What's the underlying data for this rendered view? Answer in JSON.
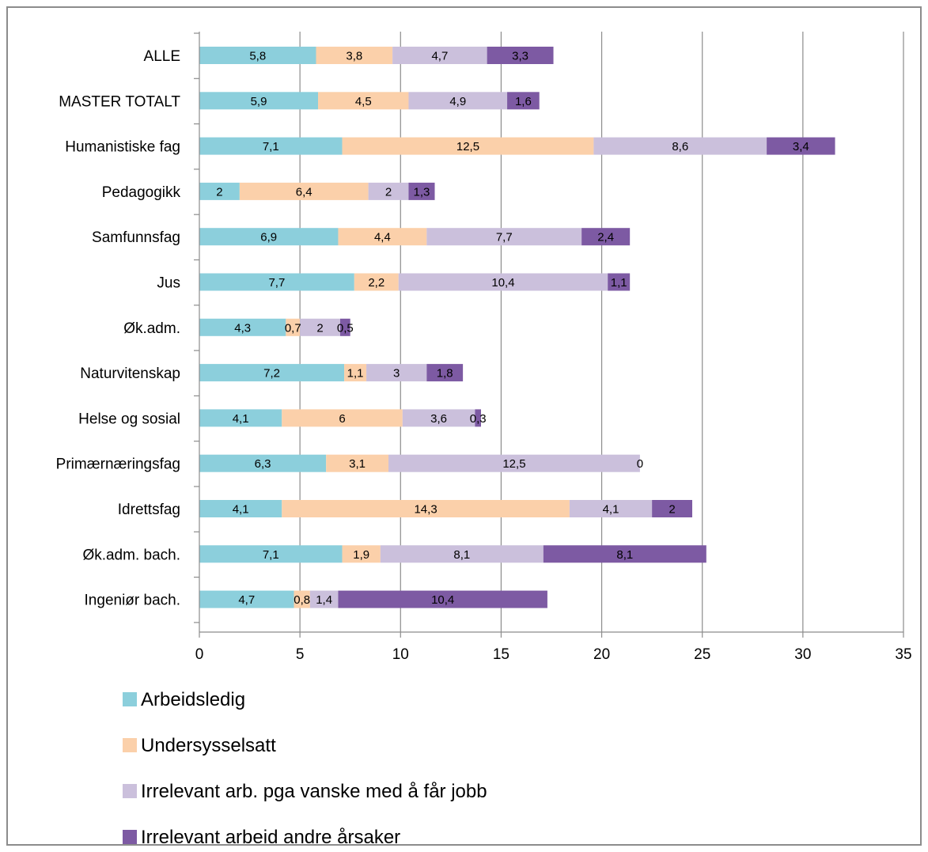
{
  "chart_data": {
    "type": "bar",
    "orientation": "horizontal",
    "stacked": true,
    "title": "",
    "xlabel": "",
    "ylabel": "",
    "xlim": [
      0,
      35
    ],
    "xticks": [
      0,
      5,
      10,
      15,
      20,
      25,
      30,
      35
    ],
    "grid": "vertical",
    "legend_position": "bottom",
    "categories": [
      "ALLE",
      "MASTER TOTALT",
      "Humanistiske fag",
      "Pedagogikk",
      "Samfunnsfag",
      "Jus",
      "Øk.adm.",
      "Naturvitenskap",
      "Helse og sosial",
      "Primærnæringsfag",
      "Idrettsfag",
      "Øk.adm. bach.",
      "Ingeniør bach."
    ],
    "series": [
      {
        "name": "Arbeidsledig",
        "color": "#8ccfdc",
        "values": [
          5.8,
          5.9,
          7.1,
          2,
          6.9,
          7.7,
          4.3,
          7.2,
          4.1,
          6.3,
          4.1,
          7.1,
          4.7
        ],
        "labels": [
          "5,8",
          "5,9",
          "7,1",
          "2",
          "6,9",
          "7,7",
          "4,3",
          "7,2",
          "4,1",
          "6,3",
          "4,1",
          "7,1",
          "4,7"
        ]
      },
      {
        "name": "Undersysselsatt",
        "color": "#fbd0aa",
        "values": [
          3.8,
          4.5,
          12.5,
          6.4,
          4.4,
          2.2,
          0.7,
          1.1,
          6,
          3.1,
          14.3,
          1.9,
          0.8
        ],
        "labels": [
          "3,8",
          "4,5",
          "12,5",
          "6,4",
          "4,4",
          "2,2",
          "0,7",
          "1,1",
          "6",
          "3,1",
          "14,3",
          "1,9",
          "0,8"
        ]
      },
      {
        "name": "Irrelevant arb. pga vanske med å får jobb",
        "color": "#cbc0dc",
        "values": [
          4.7,
          4.9,
          8.6,
          2,
          7.7,
          10.4,
          2,
          3,
          3.6,
          12.5,
          4.1,
          8.1,
          1.4
        ],
        "labels": [
          "4,7",
          "4,9",
          "8,6",
          "2",
          "7,7",
          "10,4",
          "2",
          "3",
          "3,6",
          "12,5",
          "4,1",
          "8,1",
          "1,4"
        ]
      },
      {
        "name": "Irrelevant arbeid andre årsaker",
        "color": "#7d5aa3",
        "values": [
          3.3,
          1.6,
          3.4,
          1.3,
          2.4,
          1.1,
          0.5,
          1.8,
          0.3,
          0,
          2,
          8.1,
          10.4
        ],
        "labels": [
          "3,3",
          "1,6",
          "3,4",
          "1,3",
          "2,4",
          "1,1",
          "0,5",
          "1,8",
          "0,3",
          "0",
          "2",
          "8,1",
          "10,4"
        ]
      }
    ]
  }
}
